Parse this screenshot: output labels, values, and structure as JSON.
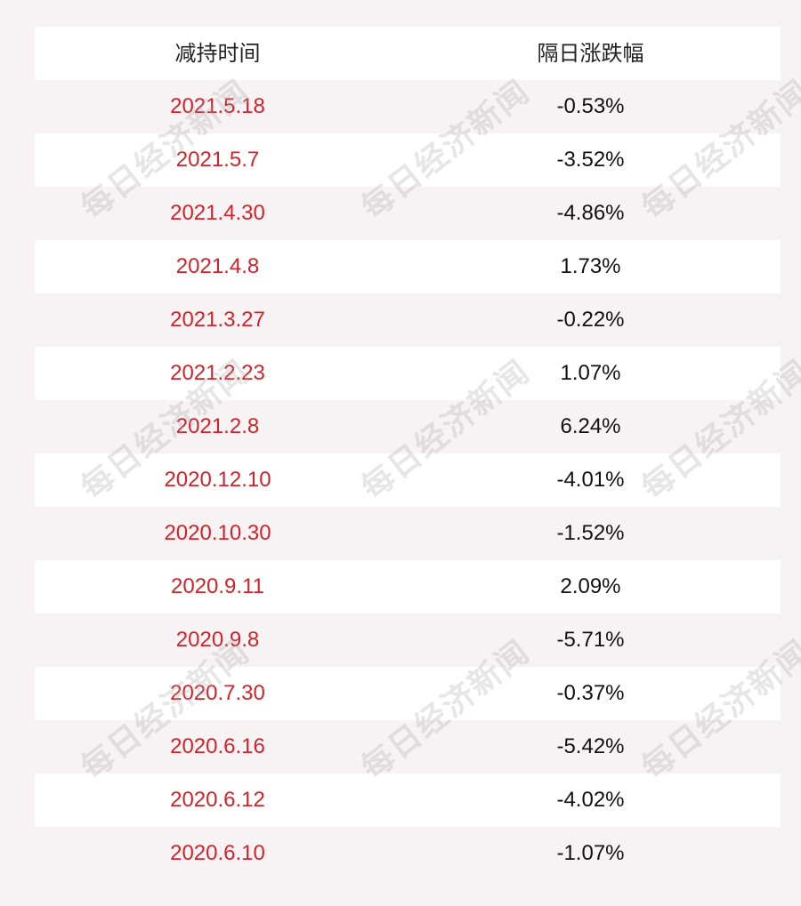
{
  "table": {
    "headers": [
      "减持时间",
      "隔日涨跌幅"
    ],
    "rows": [
      {
        "date": "2021.5.18",
        "change": "-0.53%"
      },
      {
        "date": "2021.5.7",
        "change": "-3.52%"
      },
      {
        "date": "2021.4.30",
        "change": "-4.86%"
      },
      {
        "date": "2021.4.8",
        "change": "1.73%"
      },
      {
        "date": "2021.3.27",
        "change": "-0.22%"
      },
      {
        "date": "2021.2.23",
        "change": "1.07%"
      },
      {
        "date": "2021.2.8",
        "change": "6.24%"
      },
      {
        "date": "2020.12.10",
        "change": "-4.01%"
      },
      {
        "date": "2020.10.30",
        "change": "-1.52%"
      },
      {
        "date": "2020.9.11",
        "change": "2.09%"
      },
      {
        "date": "2020.9.8",
        "change": "-5.71%"
      },
      {
        "date": "2020.7.30",
        "change": "-0.37%"
      },
      {
        "date": "2020.6.16",
        "change": "-5.42%"
      },
      {
        "date": "2020.6.12",
        "change": "-4.02%"
      },
      {
        "date": "2020.6.10",
        "change": "-1.07%"
      }
    ]
  },
  "watermark": "每日经济新闻",
  "colors": {
    "date_text": "#d2232a",
    "value_text": "#111111",
    "row_white": "#ffffff",
    "row_tinted": "#f7f3f4"
  }
}
